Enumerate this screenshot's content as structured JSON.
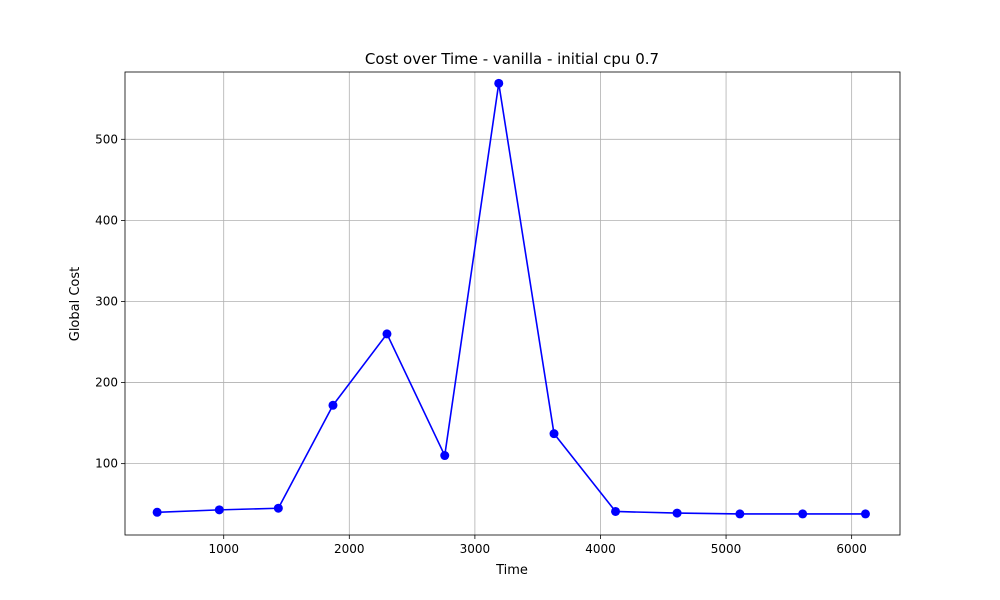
{
  "chart_data": {
    "type": "line",
    "title": "Cost over Time - vanilla - initial cpu 0.7",
    "xlabel": "Time",
    "ylabel": "Global Cost",
    "xlim": [
      214,
      6385
    ],
    "ylim": [
      12,
      583
    ],
    "xticks": [
      1000,
      2000,
      3000,
      4000,
      5000,
      6000
    ],
    "yticks": [
      100,
      200,
      300,
      400,
      500
    ],
    "grid": true,
    "color": "#0000ff",
    "marker": "circle",
    "series": [
      {
        "x": [
          470,
          965,
          1435,
          1870,
          2300,
          2760,
          3190,
          3630,
          4120,
          4610,
          5110,
          5610,
          6110
        ],
        "values": [
          40,
          43,
          45,
          172,
          260,
          110,
          569,
          137,
          41,
          39,
          38,
          38,
          38
        ]
      }
    ]
  }
}
